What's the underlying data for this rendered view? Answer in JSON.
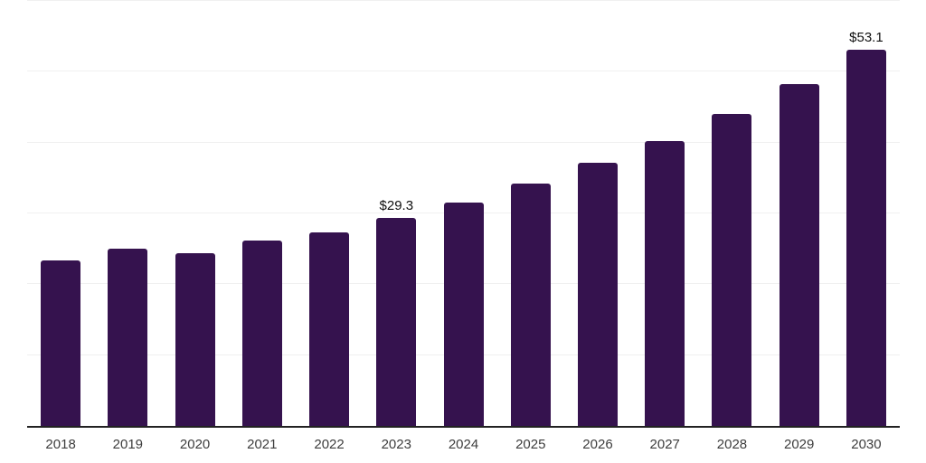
{
  "chart_data": {
    "type": "bar",
    "title": "",
    "xlabel": "",
    "ylabel": "",
    "categories": [
      "2018",
      "2019",
      "2020",
      "2021",
      "2022",
      "2023",
      "2024",
      "2025",
      "2026",
      "2027",
      "2028",
      "2029",
      "2030"
    ],
    "values": [
      23.4,
      25.0,
      24.4,
      26.2,
      27.3,
      29.3,
      31.5,
      34.2,
      37.1,
      40.2,
      44.0,
      48.3,
      53.1
    ],
    "data_labels": [
      "",
      "",
      "",
      "",
      "",
      "$29.3",
      "",
      "",
      "",
      "",
      "",
      "",
      "$53.1"
    ],
    "ylim": [
      0,
      60
    ],
    "gridline_step": 10,
    "grid": true,
    "legend": false,
    "y_tick_labels_visible": false,
    "colors": {
      "background": "#ffffff",
      "bar": "#35124e",
      "gridline": "#f0f0f0",
      "axis_line": "#222222",
      "tick_label": "#3d3d3d",
      "value_label": "#0f0f0f"
    }
  }
}
